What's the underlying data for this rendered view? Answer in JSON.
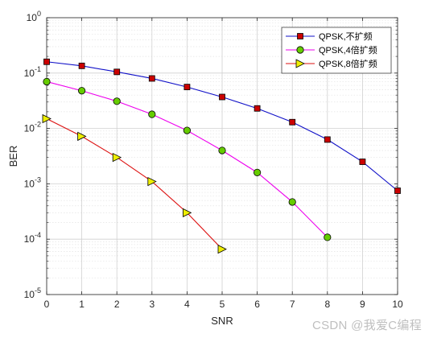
{
  "watermark": "CSDN @我爱C编程",
  "chart_data": {
    "type": "line",
    "xlabel": "SNR",
    "ylabel": "BER",
    "xlim": [
      0,
      10
    ],
    "ylim": [
      1e-05,
      1
    ],
    "yscale": "log",
    "grid": true,
    "minor_grid": true,
    "legend_position": "top-right",
    "x_ticks": [
      "0",
      "1",
      "2",
      "3",
      "4",
      "5",
      "6",
      "7",
      "8",
      "9",
      "10"
    ],
    "y_tick_exponents": [
      "-5",
      "-4",
      "-3",
      "-2",
      "-1",
      "0"
    ],
    "series": [
      {
        "name": "QPSK,不扩频",
        "color": "#1010c8",
        "marker": "square",
        "marker_fill": "#cc0000",
        "x": [
          0,
          1,
          2,
          3,
          4,
          5,
          6,
          7,
          8,
          9,
          10
        ],
        "y": [
          0.16,
          0.135,
          0.105,
          0.08,
          0.056,
          0.037,
          0.023,
          0.013,
          0.0063,
          0.0025,
          0.00075
        ]
      },
      {
        "name": "QPSK,4倍扩频",
        "color": "#ee00ee",
        "marker": "circle",
        "marker_fill": "#66cc00",
        "x": [
          0,
          1,
          2,
          3,
          4,
          5,
          6,
          7,
          8
        ],
        "y": [
          0.07,
          0.048,
          0.031,
          0.018,
          0.0092,
          0.004,
          0.0016,
          0.00047,
          0.000108
        ]
      },
      {
        "name": "QPSK,8倍扩频",
        "color": "#dd1111",
        "marker": "triangle-right",
        "marker_fill": "#eeee00",
        "x": [
          0,
          1,
          2,
          3,
          4,
          5
        ],
        "y": [
          0.015,
          0.0072,
          0.003,
          0.0011,
          0.0003,
          6.6e-05
        ]
      }
    ]
  }
}
